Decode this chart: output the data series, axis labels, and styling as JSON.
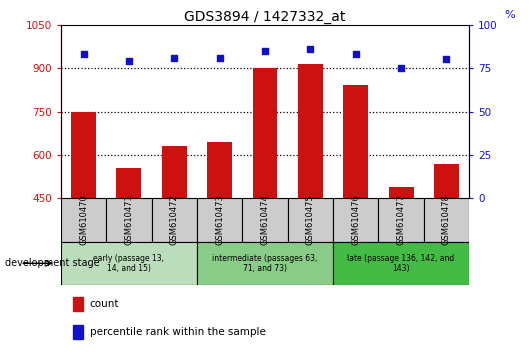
{
  "title": "GDS3894 / 1427332_at",
  "samples": [
    "GSM610470",
    "GSM610471",
    "GSM610472",
    "GSM610473",
    "GSM610474",
    "GSM610475",
    "GSM610476",
    "GSM610477",
    "GSM610478"
  ],
  "counts": [
    750,
    555,
    630,
    645,
    900,
    915,
    840,
    490,
    570
  ],
  "percentiles": [
    83,
    79,
    81,
    81,
    85,
    86,
    83,
    75,
    80
  ],
  "ylim_left": [
    450,
    1050
  ],
  "ylim_right": [
    0,
    100
  ],
  "yticks_left": [
    450,
    600,
    750,
    900,
    1050
  ],
  "yticks_right": [
    0,
    25,
    50,
    75,
    100
  ],
  "hlines": [
    600,
    750,
    900
  ],
  "bar_color": "#cc1111",
  "dot_color": "#1111cc",
  "grid_color": "#000000",
  "cell_color": "#cccccc",
  "stages": [
    {
      "label": "early (passage 13,\n14, and 15)",
      "start": 0,
      "end": 3,
      "color": "#bbddbb"
    },
    {
      "label": "intermediate (passages 63,\n71, and 73)",
      "start": 3,
      "end": 6,
      "color": "#88cc88"
    },
    {
      "label": "late (passage 136, 142, and\n143)",
      "start": 6,
      "end": 9,
      "color": "#44bb44"
    }
  ],
  "dev_stage_label": "development stage",
  "figsize": [
    5.3,
    3.54
  ],
  "dpi": 100
}
